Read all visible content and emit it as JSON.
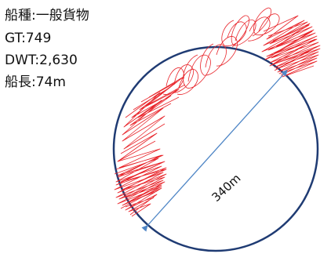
{
  "specs": {
    "ship_type": "船種:一般貨物",
    "gt": "GT:749",
    "dwt": "DWT:2,630",
    "length": "船長:74m"
  },
  "diagram": {
    "diameter_label": "340m",
    "circle_color": "#1f3b73",
    "track_color": "#e8242a",
    "dimension_color": "#4f86c6"
  }
}
